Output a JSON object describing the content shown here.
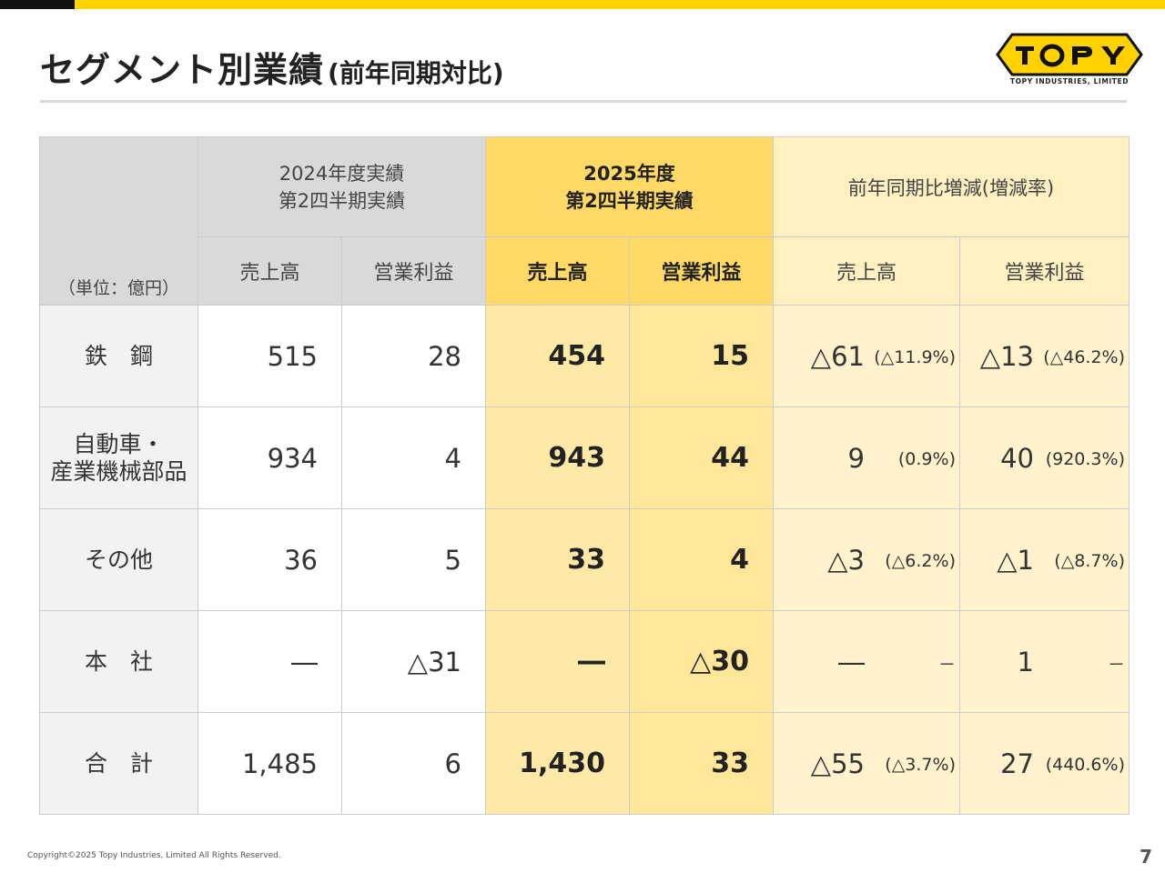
{
  "title": "セグメント別業績",
  "subtitle": "(前年同期対比)",
  "logo": {
    "mark": "TOPY",
    "tagline": "TOPY INDUSTRIES, LIMITED",
    "color": "#FFD100"
  },
  "table": {
    "unit_label": "（単位：億円）",
    "group_headers": {
      "fy2024": [
        "2024年度実績",
        "第2四半期実績"
      ],
      "fy2025": [
        "2025年度",
        "第2四半期実績"
      ],
      "diff": "前年同期比増減(増減率)"
    },
    "sub_headers": {
      "fy2024_sales": "売上高",
      "fy2024_op": "営業利益",
      "fy2025_sales": "売上高",
      "fy2025_op": "営業利益",
      "diff_sales": "売上高",
      "diff_op": "営業利益"
    },
    "rows": [
      {
        "label": [
          "鉄　鋼"
        ],
        "s2024": "515",
        "o2024": "28",
        "s2025": "454",
        "o2025": "15",
        "ds": "△61",
        "ds_pct": "(△11.9%)",
        "do": "△13",
        "do_pct": "(△46.2%)"
      },
      {
        "label": [
          "自動車・",
          "産業機械部品"
        ],
        "s2024": "934",
        "o2024": "4",
        "s2025": "943",
        "o2025": "44",
        "ds": "9",
        "ds_pct": "(0.9%)",
        "do": "40",
        "do_pct": "(920.3%)"
      },
      {
        "label": [
          "その他"
        ],
        "s2024": "36",
        "o2024": "5",
        "s2025": "33",
        "o2025": "4",
        "ds": "△3",
        "ds_pct": "(△6.2%)",
        "do": "△1",
        "do_pct": "(△8.7%)"
      },
      {
        "label": [
          "本　社"
        ],
        "s2024": "―",
        "o2024": "△31",
        "s2025": "―",
        "o2025": "△30",
        "ds": "―",
        "ds_pct": "－",
        "do": "1",
        "do_pct": "－"
      },
      {
        "label": [
          "合　計"
        ],
        "s2024": "1,485",
        "o2024": "6",
        "s2025": "1,430",
        "o2025": "33",
        "ds": "△55",
        "ds_pct": "(△3.7%)",
        "do": "27",
        "do_pct": "(440.6%)"
      }
    ]
  },
  "footer": {
    "copyright": "Copyright©2025 Topy Industries, Limited All Rights Reserved.",
    "page_number": "7"
  }
}
